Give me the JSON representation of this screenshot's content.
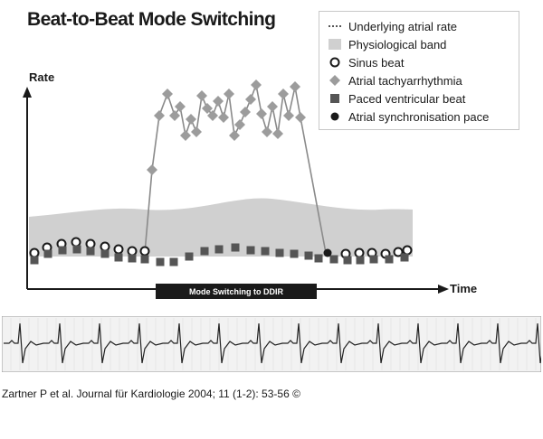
{
  "title": "Beat-to-Beat Mode Switching",
  "legend": [
    {
      "label": "Underlying atrial rate",
      "symbol": "dotted-line-icon"
    },
    {
      "label": "Physiological band",
      "symbol": "band-swatch-icon"
    },
    {
      "label": "Sinus beat",
      "symbol": "open-circle-icon"
    },
    {
      "label": "Atrial tachyarrhythmia",
      "symbol": "diamond-icon"
    },
    {
      "label": "Paced ventricular beat",
      "symbol": "square-icon"
    },
    {
      "label": "Atrial synchronisation pace",
      "symbol": "filled-circle-icon"
    }
  ],
  "axes": {
    "y_label": "Rate",
    "x_label": "Time"
  },
  "mode_bar_label": "Mode Switching to DDIR",
  "caption": "Zartner P et al. Journal für Kardiologie 2004; 11 (1-2): 53-56 ©",
  "colors": {
    "band": "#d0d0d0",
    "diamond": "#9c9c9c",
    "square": "#555555",
    "dark": "#1a1a1a",
    "ecg_bg": "#f2f2f2"
  }
}
